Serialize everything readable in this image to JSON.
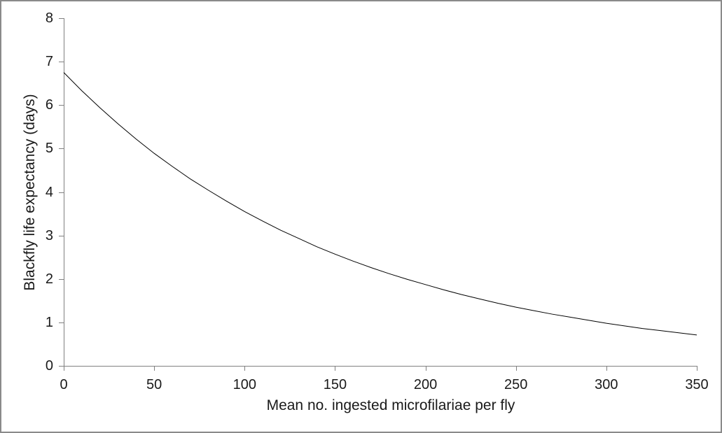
{
  "window": {
    "background": "#ffffff",
    "frame_border_color": "#8a8a8a"
  },
  "colors": {
    "axis": "#808080",
    "curve": "#000000",
    "text": "#1a1a1a"
  },
  "chart_data": {
    "type": "line",
    "title": "",
    "xlabel": "Mean no. ingested microfilariae per fly",
    "ylabel": "Blackfly life expectancy (days)",
    "xlim": [
      0,
      350
    ],
    "ylim": [
      0,
      8
    ],
    "x_ticks": [
      0,
      50,
      100,
      150,
      200,
      250,
      300,
      350
    ],
    "y_ticks": [
      0,
      1,
      2,
      3,
      4,
      5,
      6,
      7,
      8
    ],
    "grid": false,
    "legend": "none",
    "series": [
      {
        "name": "Blackfly life expectancy",
        "x": [
          0,
          10,
          20,
          30,
          40,
          50,
          60,
          70,
          80,
          90,
          100,
          110,
          120,
          130,
          140,
          150,
          160,
          170,
          180,
          190,
          200,
          210,
          220,
          230,
          240,
          250,
          260,
          270,
          280,
          290,
          300,
          310,
          320,
          330,
          340,
          350
        ],
        "y": [
          6.75,
          6.33,
          5.94,
          5.57,
          5.22,
          4.89,
          4.59,
          4.3,
          4.04,
          3.79,
          3.55,
          3.33,
          3.12,
          2.93,
          2.74,
          2.57,
          2.41,
          2.26,
          2.12,
          1.99,
          1.87,
          1.75,
          1.64,
          1.54,
          1.44,
          1.35,
          1.27,
          1.19,
          1.12,
          1.05,
          0.98,
          0.92,
          0.86,
          0.81,
          0.76,
          0.71
        ]
      }
    ]
  }
}
